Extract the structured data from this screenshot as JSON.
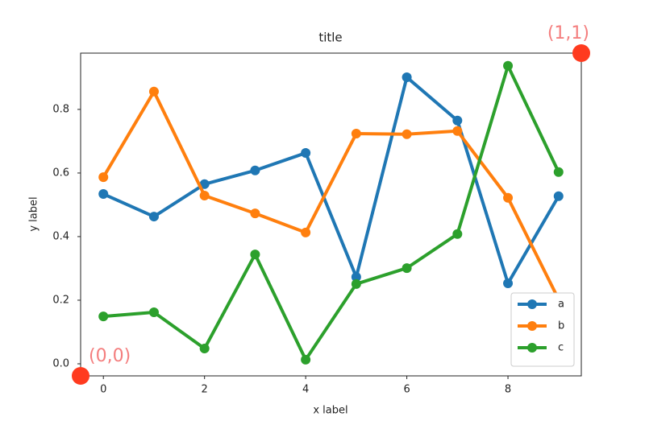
{
  "chart_data": {
    "type": "line",
    "title": "title",
    "xlabel": "x label",
    "ylabel": "y label",
    "x": [
      0,
      1,
      2,
      3,
      4,
      5,
      6,
      7,
      8,
      9
    ],
    "series": [
      {
        "name": "a",
        "color": "#1f77b4",
        "values": [
          0.534,
          0.463,
          0.565,
          0.608,
          0.663,
          0.273,
          0.901,
          0.765,
          0.253,
          0.527
        ]
      },
      {
        "name": "b",
        "color": "#ff7f0e",
        "values": [
          0.587,
          0.856,
          0.529,
          0.473,
          0.413,
          0.724,
          0.722,
          0.732,
          0.522,
          0.203
        ]
      },
      {
        "name": "c",
        "color": "#2ca02c",
        "values": [
          0.149,
          0.162,
          0.048,
          0.344,
          0.013,
          0.251,
          0.301,
          0.408,
          0.937,
          0.603
        ]
      }
    ],
    "xlim": [
      -0.45,
      9.45
    ],
    "ylim": [
      -0.038,
      0.977
    ],
    "xticks": [
      0,
      2,
      4,
      6,
      8
    ],
    "yticks": [
      {
        "value": 0,
        "label": "0.0"
      },
      0.2,
      0.4,
      0.6,
      0.8
    ],
    "legend": "lower right",
    "annotations": [
      {
        "text": "(0,0)"
      },
      {
        "text": "(1,1)"
      }
    ]
  }
}
